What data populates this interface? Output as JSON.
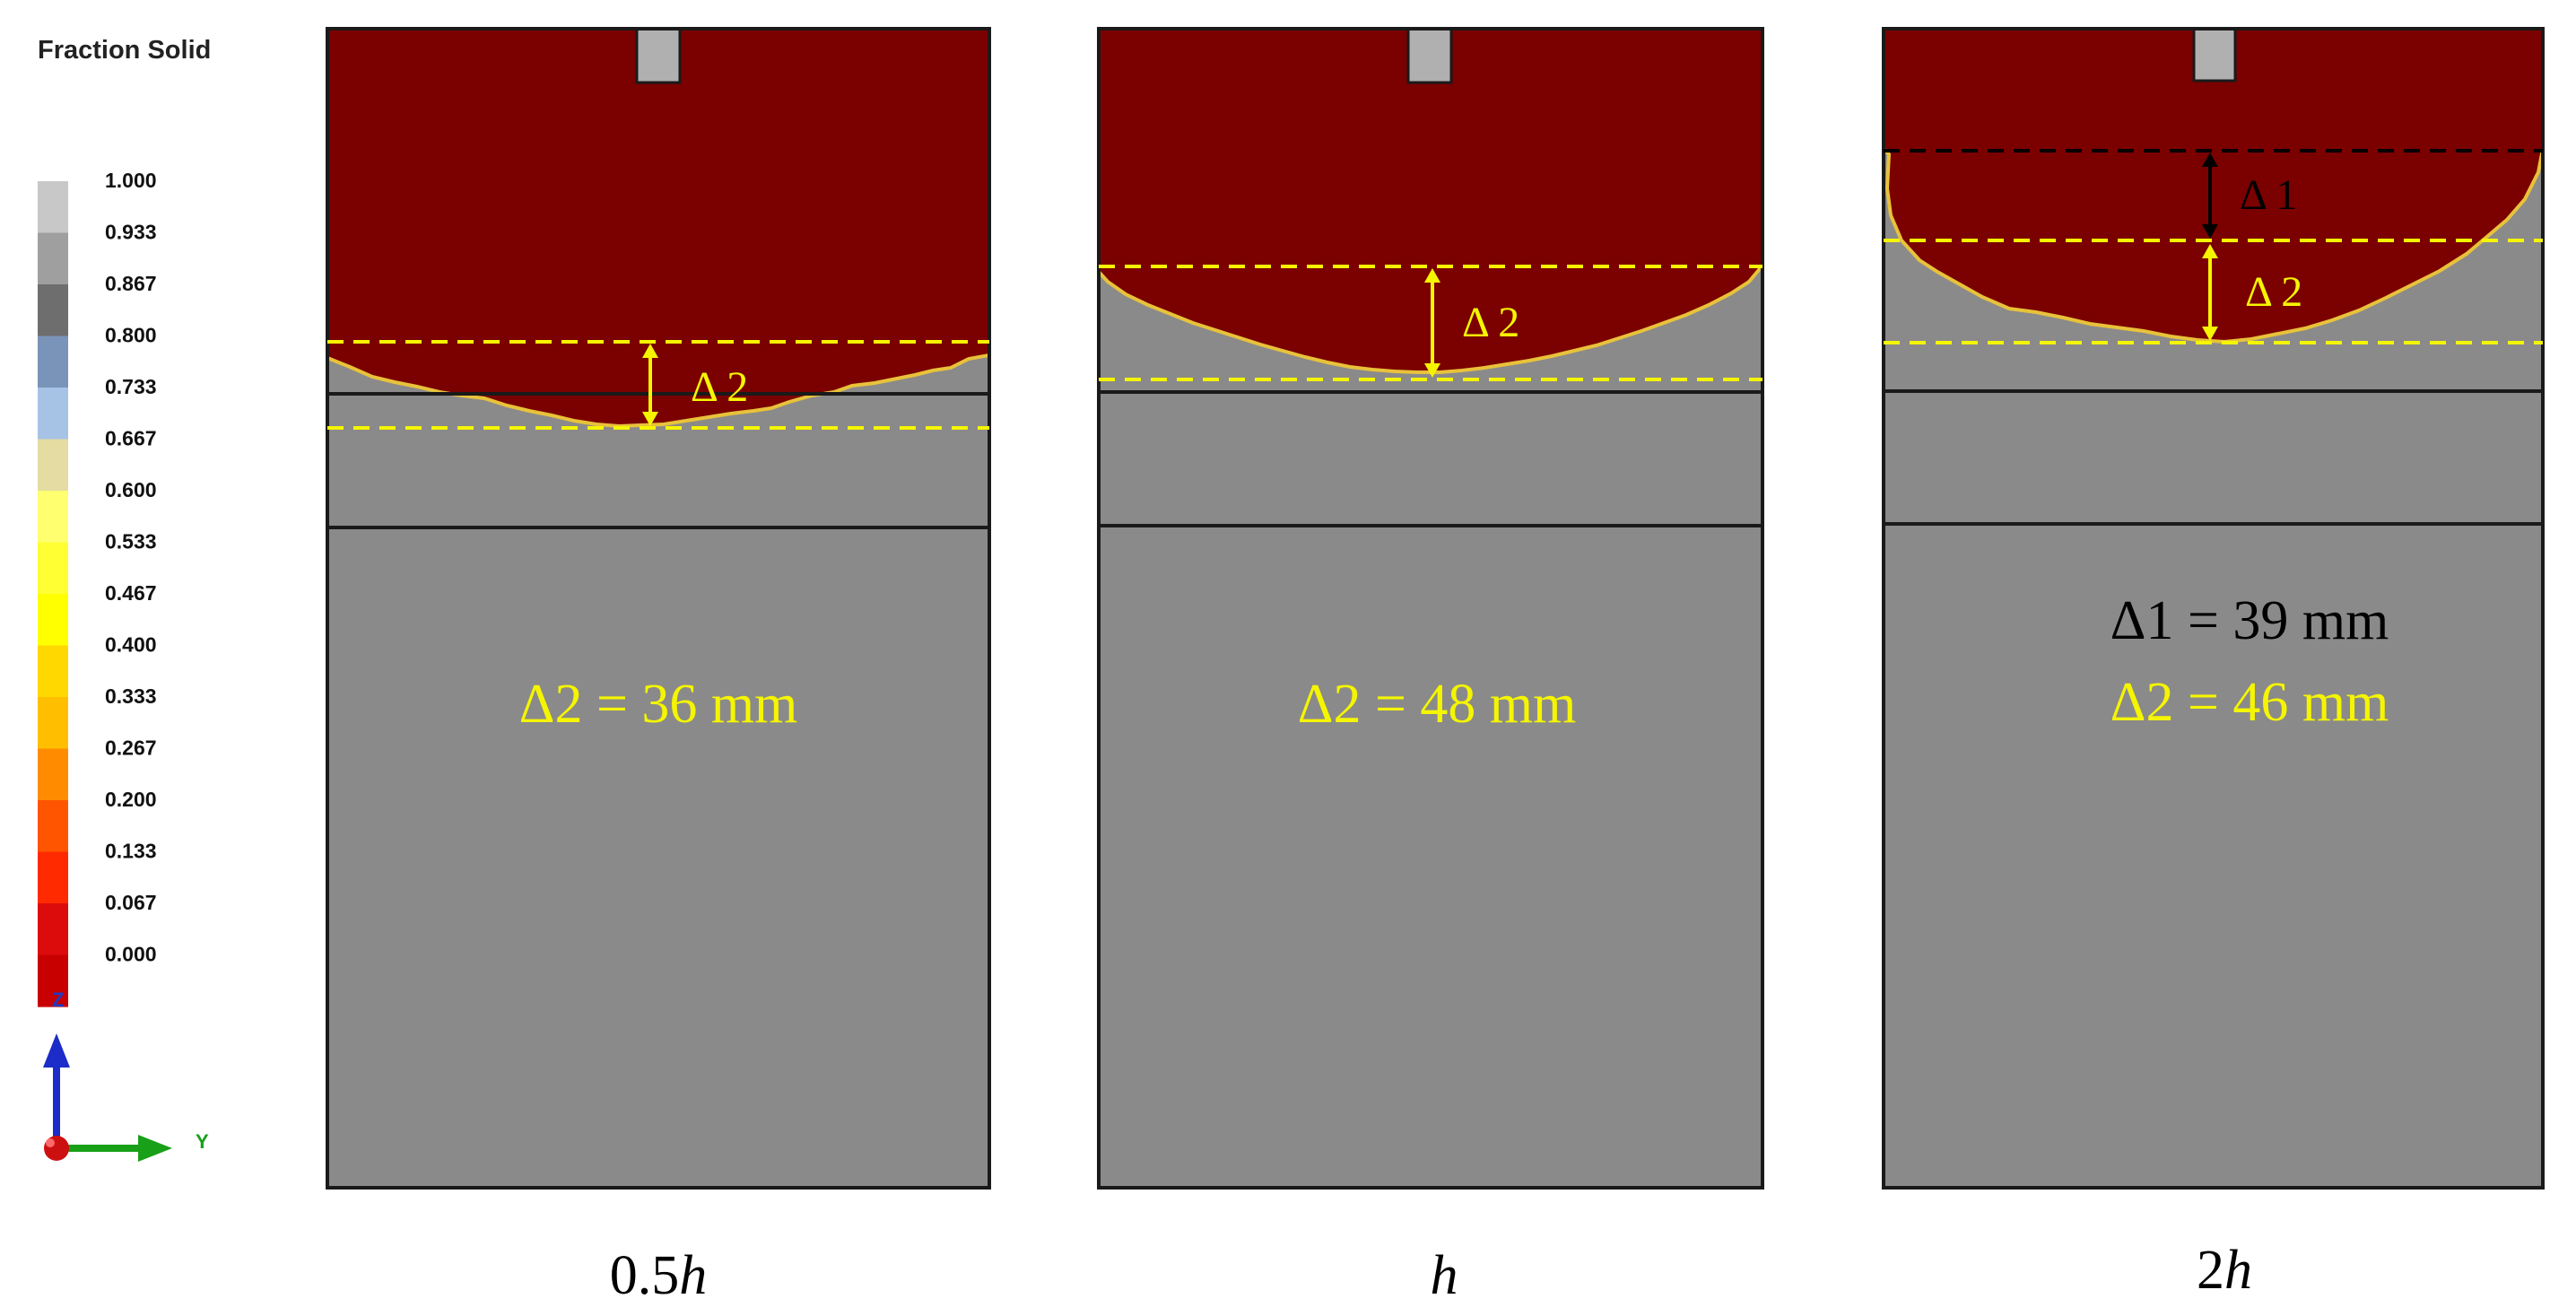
{
  "legend": {
    "title": "Fraction  Solid",
    "values": [
      "1.000",
      "0.933",
      "0.867",
      "0.800",
      "0.733",
      "0.667",
      "0.600",
      "0.533",
      "0.467",
      "0.400",
      "0.333",
      "0.267",
      "0.200",
      "0.133",
      "0.067",
      "0.000"
    ],
    "colors": [
      "#c8c8c8",
      "#9f9f9f",
      "#6e6e6e",
      "#7a93b8",
      "#a6c3e6",
      "#e4dca2",
      "#ffff70",
      "#ffff33",
      "#ffff00",
      "#ffd800",
      "#ffbf00",
      "#ff8c00",
      "#ff5500",
      "#ff2a00",
      "#dd0c0c",
      "#c80000"
    ]
  },
  "axes": {
    "z_label": "Z",
    "y_label": "Y"
  },
  "colors": {
    "liquid": "#7b0000",
    "solid": "#8a8a8a",
    "riser": "#b0b0b0",
    "outline": "#1a1a1a",
    "dash_yellow": "#f5f500",
    "annotation_yellow": "#f5f500",
    "annotation_black": "#000000"
  },
  "panels": [
    {
      "id": "0.5h",
      "caption_main": "0.5",
      "caption_italic": "h",
      "delta2_marker": "Δ 2",
      "delta2_text": "Δ2 = 36 mm",
      "delta2_mm": 36
    },
    {
      "id": "h",
      "caption_main": "",
      "caption_italic": "h",
      "delta2_marker": "Δ 2",
      "delta2_text": "Δ2 = 48 mm",
      "delta2_mm": 48
    },
    {
      "id": "2h",
      "caption_main": "2",
      "caption_italic": "h",
      "delta1_marker": "Δ 1",
      "delta2_marker": "Δ 2",
      "delta1_text": "Δ1 = 39 mm",
      "delta2_text": "Δ2 = 46 mm",
      "delta1_mm": 39,
      "delta2_mm": 46
    }
  ]
}
